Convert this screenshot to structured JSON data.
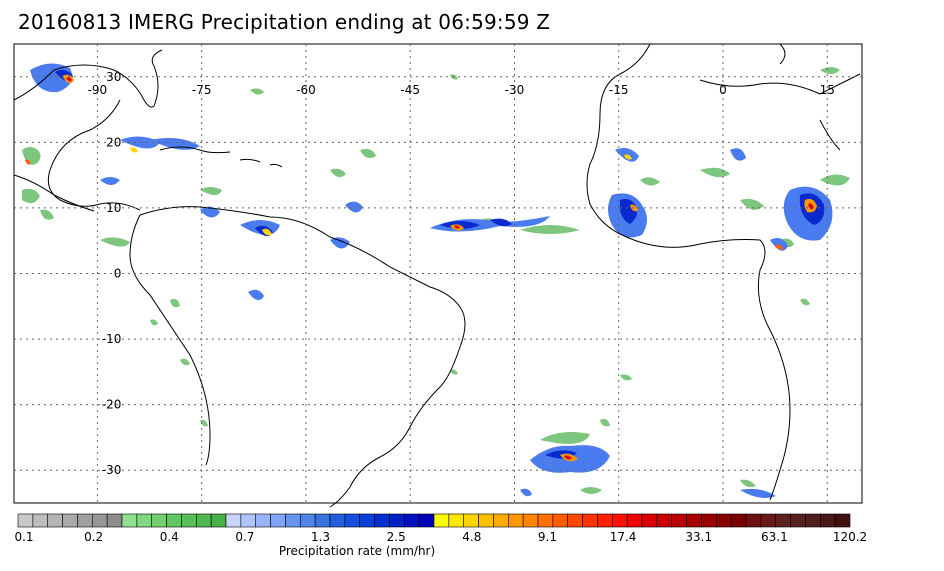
{
  "title": "20160813 IMERG Precipitation ending at 06:59:59 Z",
  "map": {
    "lon_labels": [
      "-90",
      "-75",
      "-60",
      "-45",
      "-30",
      "-15",
      "0",
      "15"
    ],
    "lat_labels": [
      "30",
      "20",
      "10",
      "0",
      "-10",
      "-20",
      "-30"
    ],
    "lon_values": [
      -90,
      -75,
      -60,
      -45,
      -30,
      -15,
      0,
      15
    ],
    "lat_values": [
      30,
      20,
      10,
      0,
      -10,
      -20,
      -30
    ],
    "lon_range": [
      -102,
      20
    ],
    "lat_range": [
      35,
      -35
    ],
    "grid": "dotted"
  },
  "colorbar": {
    "label": "Precipitation rate (mm/hr)",
    "tick_labels": [
      "0.1",
      "0.2",
      "0.4",
      "0.7",
      "1.3",
      "2.5",
      "4.8",
      "9.1",
      "17.4",
      "33.1",
      "63.1",
      "120.2"
    ],
    "colors": [
      "#c8c8c8",
      "#bebebe",
      "#b4b4b4",
      "#aaaaaa",
      "#a0a0a0",
      "#969696",
      "#8c8c8c",
      "#90e090",
      "#80d880",
      "#70d070",
      "#60c860",
      "#58bf58",
      "#50b850",
      "#48b048",
      "#c8d4ff",
      "#b0c4ff",
      "#98b4ff",
      "#80a4f8",
      "#6894f0",
      "#5084e8",
      "#3874e0",
      "#2060e0",
      "#1450e0",
      "#0a40d8",
      "#0030d0",
      "#0020c8",
      "#0010c0",
      "#0000b8",
      "#ffff00",
      "#ffe800",
      "#ffd400",
      "#ffc000",
      "#ffac00",
      "#ff9800",
      "#ff8400",
      "#ff7000",
      "#ff5c00",
      "#ff4800",
      "#ff3400",
      "#ff2000",
      "#ff1000",
      "#f00000",
      "#d80000",
      "#c80000",
      "#b80000",
      "#a80000",
      "#980000",
      "#880000",
      "#780000",
      "#701010",
      "#681818",
      "#602020",
      "#582020",
      "#502020",
      "#481818",
      "#401010"
    ]
  }
}
